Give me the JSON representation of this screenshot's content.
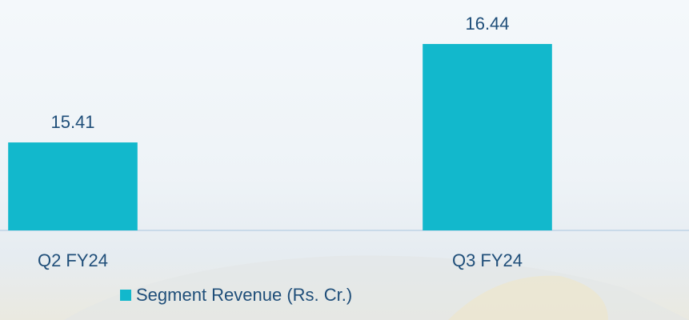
{
  "chart_data": {
    "type": "bar",
    "categories": [
      "Q2 FY24",
      "Q3 FY24"
    ],
    "series": [
      {
        "name": "Segment Revenue (Rs. Cr.)",
        "color": "#12b8cc",
        "values": [
          15.41,
          16.44
        ]
      }
    ],
    "ylim": [
      14.49,
      16.9
    ],
    "legend": "bottom"
  }
}
